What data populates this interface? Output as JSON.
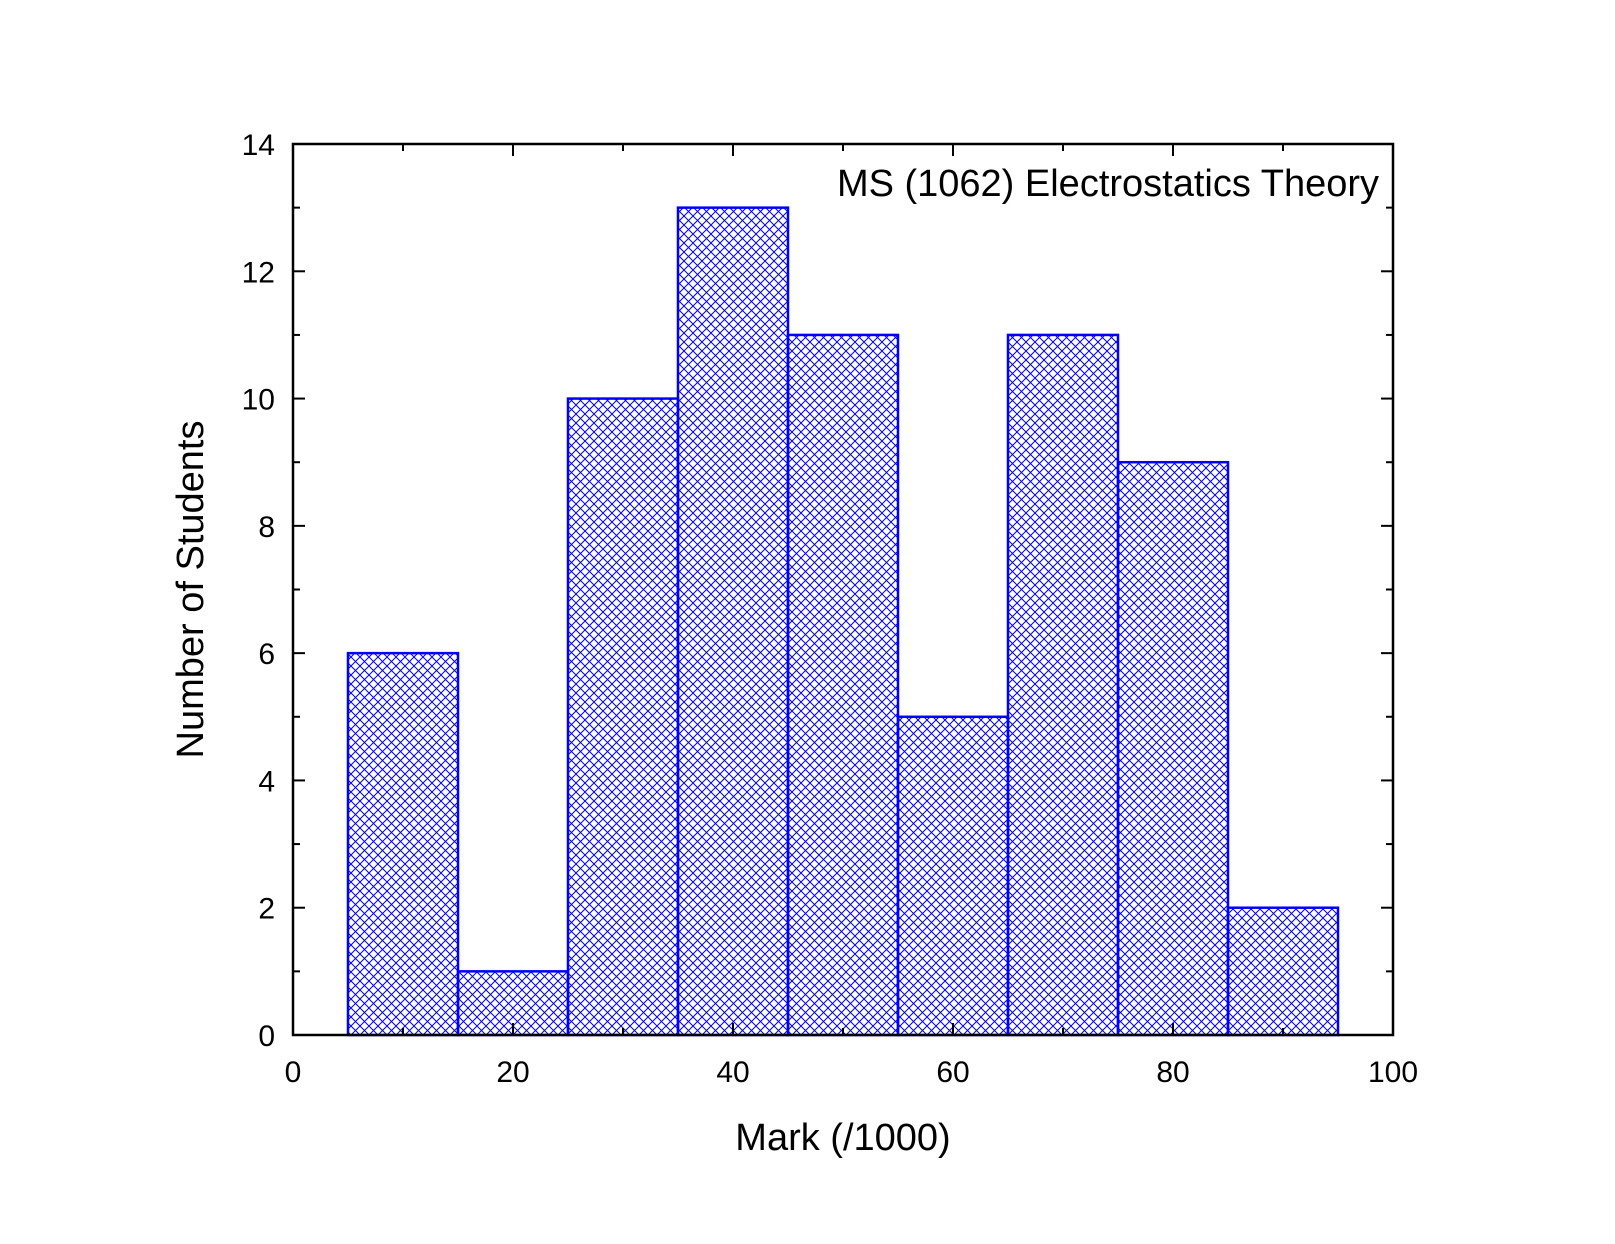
{
  "chart_data": {
    "type": "bar",
    "title": "MS (1062) Electrostatics Theory",
    "xlabel": "Mark (/1000)",
    "ylabel": "Number of Students",
    "xlim": [
      0,
      100
    ],
    "ylim": [
      0,
      14
    ],
    "x_ticks": [
      0,
      20,
      40,
      60,
      80,
      100
    ],
    "y_ticks": [
      0,
      2,
      4,
      6,
      8,
      10,
      12,
      14
    ],
    "x_minor_step": 10,
    "y_minor_step": 1,
    "bin_width": 10,
    "categories": [
      10,
      20,
      30,
      40,
      50,
      60,
      70,
      80,
      90
    ],
    "values": [
      6,
      1,
      10,
      13,
      11,
      5,
      11,
      9,
      2
    ],
    "bar_style": "cross-hatch",
    "grid": false,
    "legend": "none"
  },
  "colors": {
    "bar_edge": "#0000ff",
    "hatch": "#0000ff",
    "axes": "#000000",
    "background": "#ffffff"
  }
}
